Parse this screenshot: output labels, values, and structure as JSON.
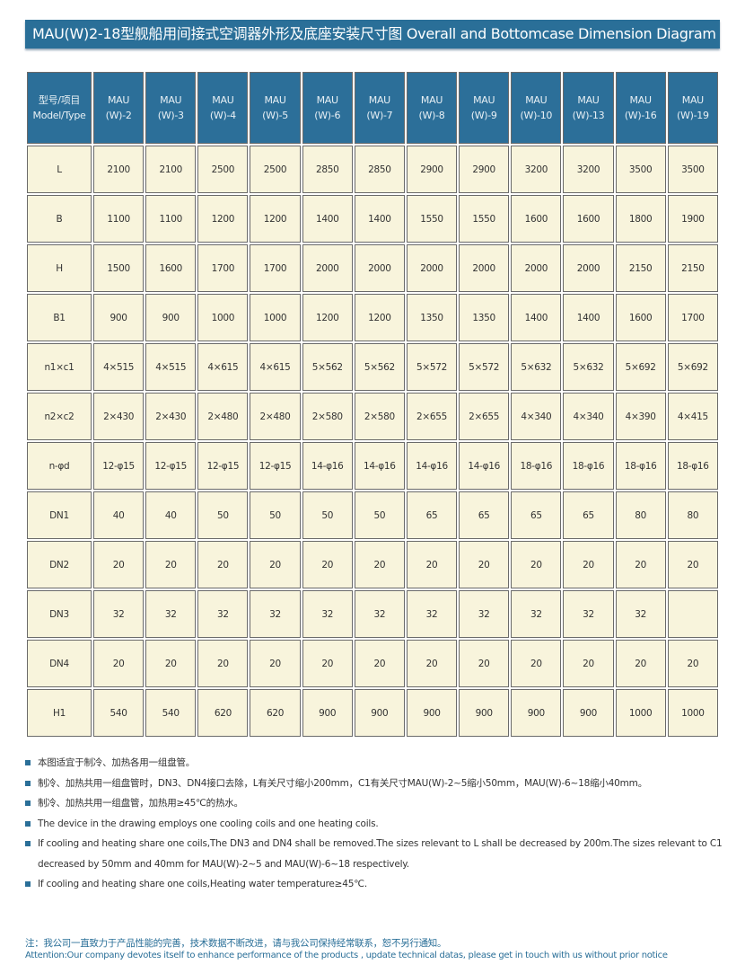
{
  "title": "MAU(W)2-18型舰船用间接式空调器外形及底座安装尺寸图 Overall and Bottomcase Dimension Diagram",
  "table": {
    "header_label_cn": "型号/项目",
    "header_label_en": "Model/Type",
    "models": [
      [
        "MAU",
        "(W)-2"
      ],
      [
        "MAU",
        "(W)-3"
      ],
      [
        "MAU",
        "(W)-4"
      ],
      [
        "MAU",
        "(W)-5"
      ],
      [
        "MAU",
        "(W)-6"
      ],
      [
        "MAU",
        "(W)-7"
      ],
      [
        "MAU",
        "(W)-8"
      ],
      [
        "MAU",
        "(W)-9"
      ],
      [
        "MAU",
        "(W)-10"
      ],
      [
        "MAU",
        "(W)-13"
      ],
      [
        "MAU",
        "(W)-16"
      ],
      [
        "MAU",
        "(W)-19"
      ]
    ],
    "rows": [
      {
        "label": "L",
        "values": [
          "2100",
          "2100",
          "2500",
          "2500",
          "2850",
          "2850",
          "2900",
          "2900",
          "3200",
          "3200",
          "3500",
          "3500"
        ]
      },
      {
        "label": "B",
        "values": [
          "1100",
          "1100",
          "1200",
          "1200",
          "1400",
          "1400",
          "1550",
          "1550",
          "1600",
          "1600",
          "1800",
          "1900"
        ]
      },
      {
        "label": "H",
        "values": [
          "1500",
          "1600",
          "1700",
          "1700",
          "2000",
          "2000",
          "2000",
          "2000",
          "2000",
          "2000",
          "2150",
          "2150"
        ]
      },
      {
        "label": "B1",
        "values": [
          "900",
          "900",
          "1000",
          "1000",
          "1200",
          "1200",
          "1350",
          "1350",
          "1400",
          "1400",
          "1600",
          "1700"
        ]
      },
      {
        "label": "n1×c1",
        "values": [
          "4×515",
          "4×515",
          "4×615",
          "4×615",
          "5×562",
          "5×562",
          "5×572",
          "5×572",
          "5×632",
          "5×632",
          "5×692",
          "5×692"
        ]
      },
      {
        "label": "n2×c2",
        "values": [
          "2×430",
          "2×430",
          "2×480",
          "2×480",
          "2×580",
          "2×580",
          "2×655",
          "2×655",
          "4×340",
          "4×340",
          "4×390",
          "4×415"
        ]
      },
      {
        "label": "n-φd",
        "values": [
          "12-φ15",
          "12-φ15",
          "12-φ15",
          "12-φ15",
          "14-φ16",
          "14-φ16",
          "14-φ16",
          "14-φ16",
          "18-φ16",
          "18-φ16",
          "18-φ16",
          "18-φ16"
        ]
      },
      {
        "label": "DN1",
        "values": [
          "40",
          "40",
          "50",
          "50",
          "50",
          "50",
          "65",
          "65",
          "65",
          "65",
          "80",
          "80"
        ]
      },
      {
        "label": "DN2",
        "values": [
          "20",
          "20",
          "20",
          "20",
          "20",
          "20",
          "20",
          "20",
          "20",
          "20",
          "20",
          "20"
        ]
      },
      {
        "label": "DN3",
        "values": [
          "32",
          "32",
          "32",
          "32",
          "32",
          "32",
          "32",
          "32",
          "32",
          "32",
          "32",
          ""
        ]
      },
      {
        "label": "DN4",
        "values": [
          "20",
          "20",
          "20",
          "20",
          "20",
          "20",
          "20",
          "20",
          "20",
          "20",
          "20",
          "20"
        ]
      },
      {
        "label": "H1",
        "values": [
          "540",
          "540",
          "620",
          "620",
          "900",
          "900",
          "900",
          "900",
          "900",
          "900",
          "1000",
          "1000"
        ]
      }
    ]
  },
  "notes": [
    "本图适宜于制冷、加热各用一组盘管。",
    "制冷、加热共用一组盘管时，DN3、DN4接口去除，L有关尺寸缩小200mm，C1有关尺寸MAU(W)-2~5缩小50mm，MAU(W)-6~18缩小40mm。",
    "制冷、加热共用一组盘管，加热用≥45℃的热水。",
    "The device in the drawing employs one cooling coils and one heating coils.",
    "If cooling and heating share one coils,The DN3 and DN4 shall be removed.The sizes relevant to L shall be decreased by 200m.The sizes relevant to C1 decreased by 50mm and 40mm for MAU(W)-2~5 and MAU(W)-6~18 respectively.",
    "If cooling and heating share one coils,Heating water temperature≥45℃."
  ],
  "footer": {
    "cn": "注：我公司一直致力于产品性能的完善，技术数据不断改进，请与我公司保持经常联系，恕不另行通知。",
    "en": "Attention:Our company devotes itself to enhance performance of the products , update technical datas, please get in touch with us without prior notice"
  },
  "colors": {
    "accent": "#2a6f98",
    "cell": "#f8f4dc"
  }
}
